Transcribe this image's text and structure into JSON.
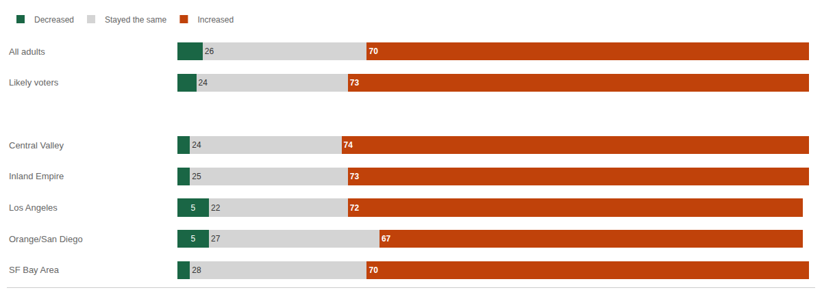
{
  "chart_data": {
    "type": "bar",
    "orientation": "horizontal",
    "stacked": true,
    "categories": [
      "All adults",
      "Likely voters",
      null,
      "Central Valley",
      "Inland Empire",
      "Los Angeles",
      "Orange/San Diego",
      "SF Bay Area"
    ],
    "series": [
      {
        "name": "Decreased",
        "color": "#1a6645",
        "values": [
          4,
          3,
          0,
          2,
          2,
          5,
          5,
          2
        ],
        "value_labels": [
          null,
          null,
          null,
          null,
          null,
          "5",
          "5",
          null
        ]
      },
      {
        "name": "Stayed the same",
        "color": "#d4d4d4",
        "values": [
          26,
          24,
          0,
          24,
          25,
          22,
          27,
          28
        ],
        "value_labels": [
          "26",
          "24",
          null,
          "24",
          "25",
          "22",
          "27",
          "28"
        ]
      },
      {
        "name": "Increased",
        "color": "#c0420a",
        "values": [
          70,
          73,
          0,
          74,
          73,
          72,
          67,
          70
        ],
        "value_labels": [
          "70",
          "73",
          null,
          "74",
          "73",
          "72",
          "67",
          "70"
        ]
      }
    ],
    "xlim": [
      -27,
      101
    ],
    "data_labels": true,
    "tick_labels": "y",
    "grid": false,
    "legend": "top left"
  }
}
